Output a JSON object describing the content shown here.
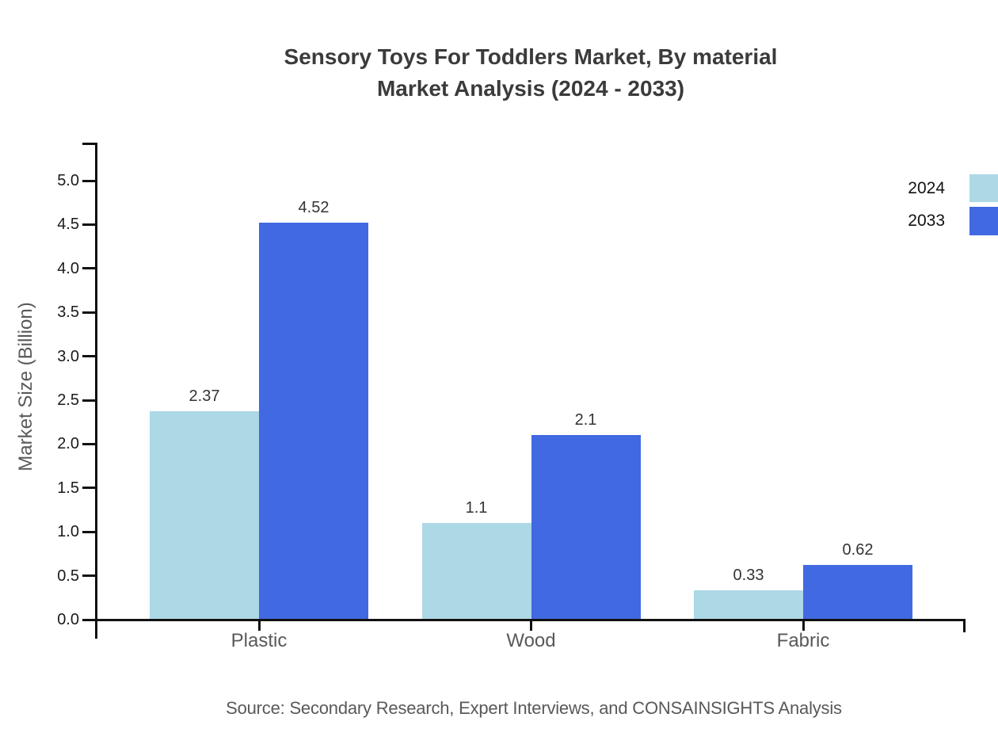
{
  "title": {
    "line1": "Sensory Toys For Toddlers Market, By material",
    "line2": "Market Analysis (2024 - 2033)"
  },
  "source": "Source: Secondary Research, Expert Interviews, and CONSAINSIGHTS Analysis",
  "colors": {
    "series_2024": "#ADD8E6",
    "series_2033": "#4169E1",
    "axis": "#111111",
    "title_text": "#3B3B3B",
    "muted_text": "#595959",
    "value_text": "#333333"
  },
  "legend": [
    {
      "label": "2024",
      "color": "#ADD8E6"
    },
    {
      "label": "2033",
      "color": "#4169E1"
    }
  ],
  "chart_data": {
    "type": "bar",
    "title": "Sensory Toys For Toddlers Market, By material — Market Analysis (2024 - 2033)",
    "categories": [
      "Plastic",
      "Wood",
      "Fabric"
    ],
    "series": [
      {
        "name": "2024",
        "color": "#ADD8E6",
        "values": [
          2.37,
          1.1,
          0.33
        ]
      },
      {
        "name": "2033",
        "color": "#4169E1",
        "values": [
          4.52,
          2.1,
          0.62
        ]
      }
    ],
    "xlabel": "",
    "ylabel": "Market Size (Billion)",
    "ylim": [
      0,
      5.5
    ],
    "yticks": [
      0,
      0.5,
      1,
      1.5,
      2,
      2.5,
      3,
      3.5,
      4,
      4.5,
      5
    ],
    "ytick_labels": [
      "0.0",
      "0.5",
      "1.0",
      "1.5",
      "2.0",
      "2.5",
      "3.0",
      "3.5",
      "4.0",
      "4.5",
      "5.0"
    ],
    "grid": false,
    "legend_position": "top-right",
    "value_labels_shown": true
  }
}
